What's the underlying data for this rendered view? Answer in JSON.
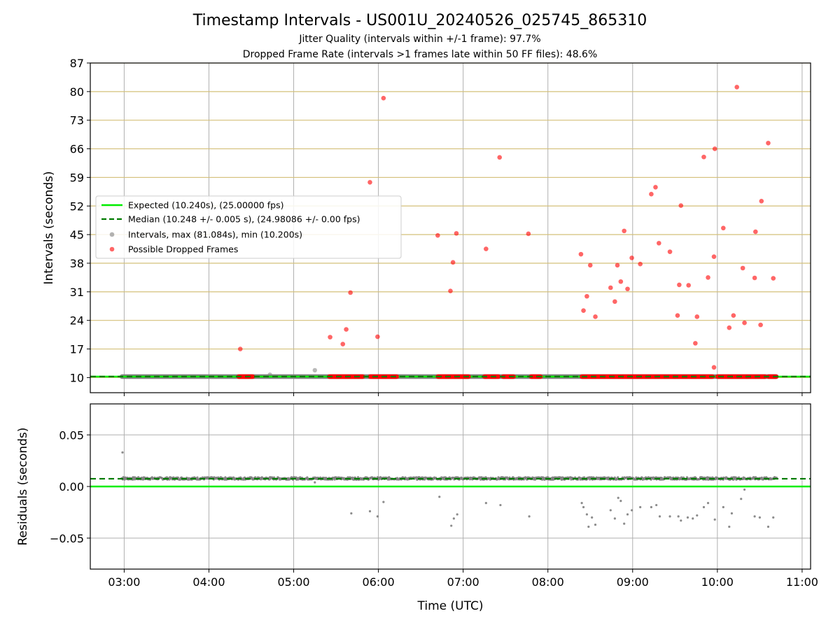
{
  "title": "Timestamp Intervals - US001U_20240526_025745_865310",
  "subtitle1": "Jitter Quality (intervals within +/-1 frame): 97.7%",
  "subtitle2": "Dropped Frame Rate (intervals >1 frames late within 50 FF files): 48.6%",
  "colors": {
    "expected": "#00ee00",
    "median": "#007a00",
    "intervals": "#808080",
    "dropped": "#ff0000",
    "hgrid_top": "#d4c07a",
    "grid": "#b0b0b0"
  },
  "chart_data": [
    {
      "type": "scatter",
      "panel": "top",
      "ylabel": "Intervals (seconds)",
      "xlabel": "",
      "x_units": "hours UTC",
      "xlim": [
        2.6,
        11.1
      ],
      "ylim": [
        6.3,
        87
      ],
      "yticks": [
        10,
        17,
        24,
        31,
        38,
        45,
        52,
        59,
        66,
        73,
        80,
        87
      ],
      "grid": "vertical grey at x ticks, horizontal tan at y ticks",
      "legend_position": "center-left",
      "legend": [
        "Expected (10.240s), (25.00000 fps)",
        "Median (10.248 +/- 0.005 s), (24.98086 +/- 0.00 fps)",
        "Intervals, max (81.084s), min (10.200s)",
        "Possible Dropped Frames"
      ],
      "lines": {
        "expected": 10.24,
        "median": 10.248
      },
      "interval_band": {
        "from": 2.97,
        "to": 10.7,
        "y": 10.24
      },
      "interval_outliers": [
        [
          4.72,
          10.7
        ],
        [
          5.25,
          11.8
        ]
      ],
      "dropped_clusters": [
        [
          4.35,
          4.52
        ],
        [
          5.42,
          5.82
        ],
        [
          5.9,
          6.22
        ],
        [
          6.7,
          7.07
        ],
        [
          7.25,
          7.42
        ],
        [
          7.47,
          7.6
        ],
        [
          7.8,
          7.92
        ],
        [
          8.4,
          8.82
        ],
        [
          8.82,
          9.15
        ],
        [
          9.15,
          9.5
        ],
        [
          9.5,
          9.95
        ],
        [
          10.0,
          10.35
        ],
        [
          10.35,
          10.57
        ],
        [
          10.6,
          10.7
        ]
      ],
      "dropped_points": [
        [
          4.37,
          17.0
        ],
        [
          5.43,
          19.9
        ],
        [
          5.58,
          18.2
        ],
        [
          5.62,
          21.8
        ],
        [
          5.67,
          30.8
        ],
        [
          5.9,
          57.8
        ],
        [
          5.99,
          20.0
        ],
        [
          6.06,
          78.4
        ],
        [
          6.7,
          44.8
        ],
        [
          6.85,
          31.2
        ],
        [
          6.88,
          38.2
        ],
        [
          6.92,
          45.3
        ],
        [
          7.27,
          41.5
        ],
        [
          7.43,
          63.9
        ],
        [
          7.77,
          45.2
        ],
        [
          8.39,
          40.2
        ],
        [
          8.42,
          26.4
        ],
        [
          8.46,
          29.9
        ],
        [
          8.5,
          37.5
        ],
        [
          8.56,
          24.9
        ],
        [
          8.74,
          32.0
        ],
        [
          8.79,
          28.6
        ],
        [
          8.82,
          37.5
        ],
        [
          8.86,
          33.5
        ],
        [
          8.9,
          45.9
        ],
        [
          8.94,
          31.7
        ],
        [
          8.99,
          39.3
        ],
        [
          9.09,
          37.8
        ],
        [
          9.22,
          54.9
        ],
        [
          9.27,
          56.6
        ],
        [
          9.31,
          42.9
        ],
        [
          9.44,
          40.8
        ],
        [
          9.53,
          25.2
        ],
        [
          9.55,
          32.7
        ],
        [
          9.57,
          52.1
        ],
        [
          9.66,
          32.6
        ],
        [
          9.74,
          18.4
        ],
        [
          9.76,
          24.9
        ],
        [
          9.84,
          64.0
        ],
        [
          9.89,
          34.5
        ],
        [
          9.96,
          39.6
        ],
        [
          9.96,
          12.5
        ],
        [
          9.97,
          66.0
        ],
        [
          10.07,
          46.6
        ],
        [
          10.14,
          22.2
        ],
        [
          10.19,
          25.2
        ],
        [
          10.23,
          81.1
        ],
        [
          10.3,
          36.8
        ],
        [
          10.32,
          23.4
        ],
        [
          10.44,
          34.4
        ],
        [
          10.45,
          45.7
        ],
        [
          10.51,
          22.9
        ],
        [
          10.52,
          53.2
        ],
        [
          10.6,
          67.4
        ],
        [
          10.66,
          34.3
        ]
      ]
    },
    {
      "type": "scatter",
      "panel": "bottom",
      "ylabel": "Residuals (seconds)",
      "xlabel": "Time (UTC)",
      "x_units": "hours UTC",
      "xlim": [
        2.6,
        11.1
      ],
      "ylim": [
        -0.08,
        0.08
      ],
      "yticks": [
        0.05,
        0.0,
        -0.05
      ],
      "ytick_labels": [
        "0.05",
        "0.00",
        "−0.05"
      ],
      "xticks": [
        3,
        4,
        5,
        6,
        7,
        8,
        9,
        10,
        11
      ],
      "xtick_labels": [
        "03:00",
        "04:00",
        "05:00",
        "06:00",
        "07:00",
        "08:00",
        "09:00",
        "10:00",
        "11:00"
      ],
      "lines": {
        "expected": 0.0,
        "median": 0.0075
      },
      "residual_band": {
        "from": 2.97,
        "to": 10.7,
        "center": 0.0078,
        "spread": 0.0012
      },
      "residual_points": [
        [
          2.98,
          0.033
        ],
        [
          2.99,
          0.009
        ],
        [
          4.72,
          0.009
        ],
        [
          5.25,
          0.004
        ],
        [
          5.68,
          -0.026
        ],
        [
          5.9,
          -0.024
        ],
        [
          5.99,
          -0.029
        ],
        [
          6.06,
          -0.015
        ],
        [
          6.72,
          -0.01
        ],
        [
          6.86,
          -0.038
        ],
        [
          6.89,
          -0.031
        ],
        [
          6.93,
          -0.027
        ],
        [
          7.27,
          -0.016
        ],
        [
          7.44,
          -0.018
        ],
        [
          7.78,
          -0.029
        ],
        [
          8.4,
          -0.016
        ],
        [
          8.42,
          -0.02
        ],
        [
          8.46,
          -0.027
        ],
        [
          8.48,
          -0.039
        ],
        [
          8.52,
          -0.03
        ],
        [
          8.56,
          -0.037
        ],
        [
          8.74,
          -0.023
        ],
        [
          8.79,
          -0.031
        ],
        [
          8.83,
          -0.011
        ],
        [
          8.86,
          -0.014
        ],
        [
          8.9,
          -0.036
        ],
        [
          8.94,
          -0.027
        ],
        [
          8.99,
          -0.023
        ],
        [
          9.09,
          -0.02
        ],
        [
          9.22,
          -0.02
        ],
        [
          9.28,
          -0.018
        ],
        [
          9.32,
          -0.029
        ],
        [
          9.44,
          -0.029
        ],
        [
          9.54,
          -0.029
        ],
        [
          9.57,
          -0.033
        ],
        [
          9.65,
          -0.03
        ],
        [
          9.71,
          -0.031
        ],
        [
          9.76,
          -0.028
        ],
        [
          9.84,
          -0.02
        ],
        [
          9.89,
          -0.016
        ],
        [
          9.97,
          -0.032
        ],
        [
          10.07,
          -0.02
        ],
        [
          10.14,
          -0.039
        ],
        [
          10.17,
          -0.026
        ],
        [
          10.28,
          -0.012
        ],
        [
          10.32,
          -0.003
        ],
        [
          10.44,
          -0.029
        ],
        [
          10.5,
          -0.03
        ],
        [
          10.6,
          -0.039
        ],
        [
          10.66,
          -0.03
        ]
      ]
    }
  ]
}
